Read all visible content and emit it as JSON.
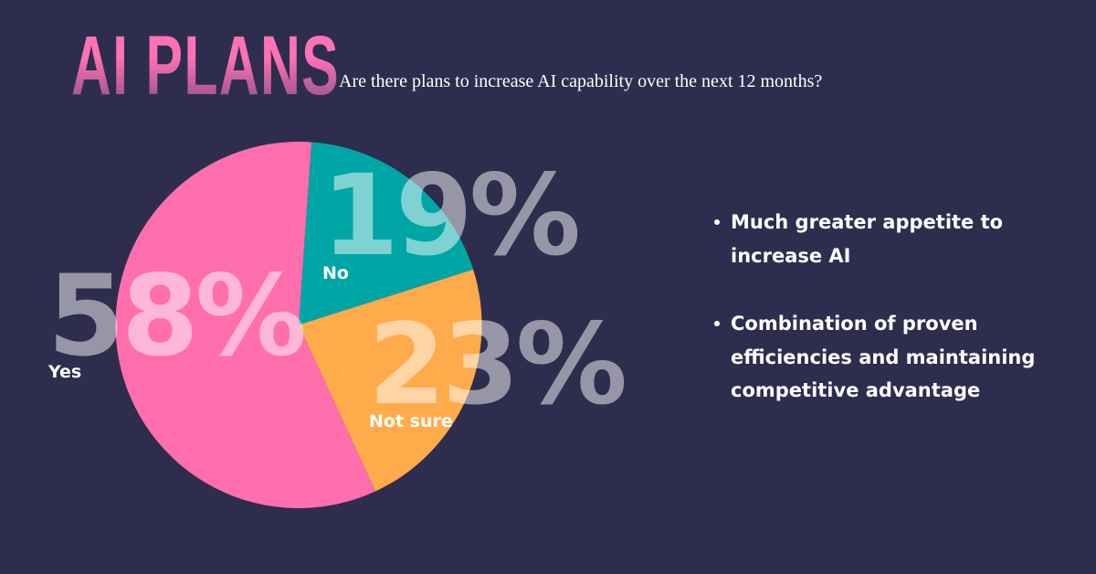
{
  "header": {
    "title": "AI PLANS",
    "subtitle": "Are there plans to increase AI capability over the next 12 months?"
  },
  "colors": {
    "background": "#2e2d4e",
    "yes": "#ff6fae",
    "no": "#00a5a5",
    "not_sure": "#ffab4c",
    "title_gradient_top": "#ff72b4",
    "title_gradient_bottom": "#8a4f86"
  },
  "slices": {
    "yes": {
      "label": "Yes",
      "value_text": "58%"
    },
    "no": {
      "label": "No",
      "value_text": "19%"
    },
    "not_sure": {
      "label": "Not sure",
      "value_text": "23%"
    }
  },
  "bullets": [
    {
      "text": "Much greater appetite to increase AI"
    },
    {
      "text": "Combination of proven efficiencies and maintaining competitive advantage"
    }
  ],
  "chart_data": {
    "type": "pie",
    "title": "AI PLANS",
    "subtitle": "Are there plans to increase AI capability over the next 12 months?",
    "categories": [
      "Yes",
      "No",
      "Not sure"
    ],
    "values": [
      58,
      19,
      23
    ],
    "unit": "%",
    "colors": [
      "#ff6fae",
      "#00a5a5",
      "#ffab4c"
    ],
    "start_angle_deg_clockwise_from_top": 4,
    "order_clockwise": [
      "No",
      "Not sure",
      "Yes"
    ],
    "legend": "none (direct labels)",
    "annotations": [
      "Much greater appetite to increase AI",
      "Combination of proven efficiencies and maintaining competitive advantage"
    ]
  }
}
